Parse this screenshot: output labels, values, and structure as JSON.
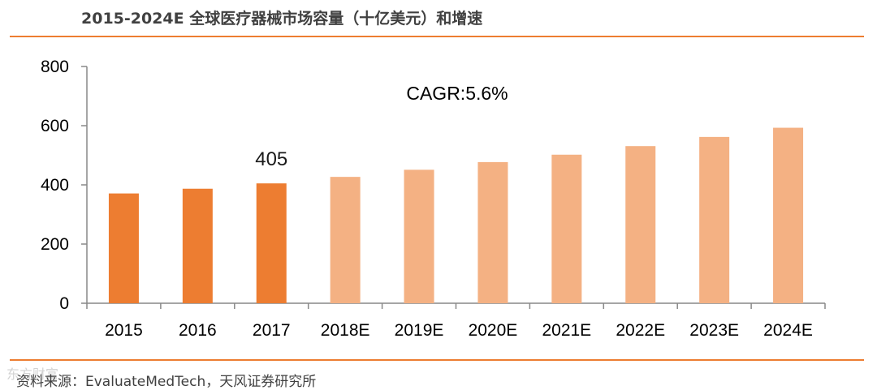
{
  "title": "2015-2024E 全球医疗器械市场容量（十亿美元）和增速",
  "source": "资料来源：EvaluateMedTech，天风证券研究所",
  "watermark": "东方财富",
  "colors": {
    "actual": "#ED7D31",
    "estimate": "#F4B183",
    "rule": "#ED7D31",
    "axis": "#888888"
  },
  "chart_data": {
    "type": "bar",
    "title": "2015-2024E 全球医疗器械市场容量（十亿美元）和增速",
    "categories": [
      "2015",
      "2016",
      "2017",
      "2018E",
      "2019E",
      "2020E",
      "2021E",
      "2022E",
      "2023E",
      "2024E"
    ],
    "values": [
      371,
      387,
      405,
      427,
      451,
      477,
      502,
      531,
      562,
      593
    ],
    "estimate": [
      false,
      false,
      false,
      true,
      true,
      true,
      true,
      true,
      true,
      true
    ],
    "ylim": [
      0,
      800
    ],
    "yticks": [
      0,
      200,
      400,
      600,
      800
    ],
    "xlabel": "",
    "ylabel": "",
    "annotations": [
      {
        "text": "CAGR:5.6%"
      },
      {
        "text": "405",
        "category": "2017"
      }
    ],
    "grid": false
  }
}
